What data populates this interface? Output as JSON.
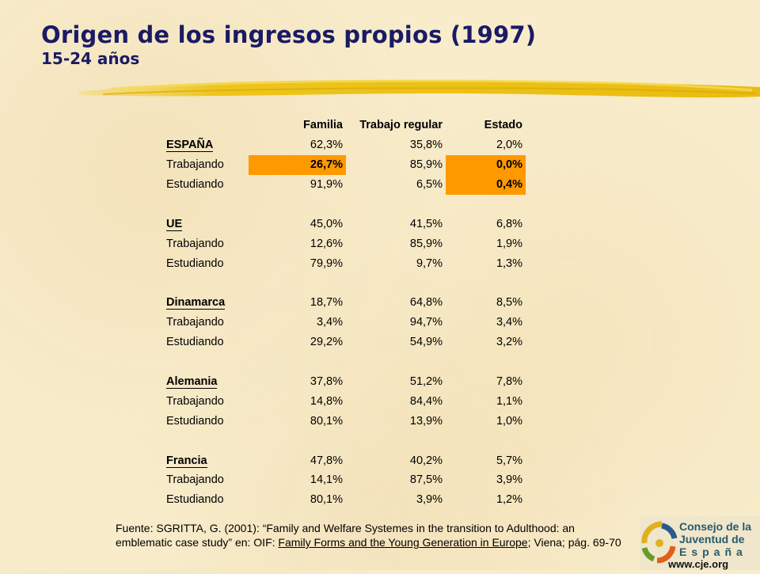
{
  "title": "Origen de los ingresos propios (1997)",
  "subtitle": "15-24 años",
  "headers": [
    "",
    "Familia",
    "Trabajo regular",
    "Estado"
  ],
  "groups": [
    {
      "rows": [
        {
          "label": "ESPAÑA",
          "familia": "62,3%",
          "trabajo": "35,8%",
          "estado": "2,0%"
        },
        {
          "label": "Trabajando",
          "familia": "26,7%",
          "trabajo": "85,9%",
          "estado": "0,0%"
        },
        {
          "label": "Estudiando",
          "familia": "91,9%",
          "trabajo": "6,5%",
          "estado": "0,4%"
        }
      ]
    },
    {
      "rows": [
        {
          "label": "UE",
          "familia": "45,0%",
          "trabajo": "41,5%",
          "estado": "6,8%"
        },
        {
          "label": "Trabajando",
          "familia": "12,6%",
          "trabajo": "85,9%",
          "estado": "1,9%"
        },
        {
          "label": "Estudiando",
          "familia": "79,9%",
          "trabajo": "9,7%",
          "estado": "1,3%"
        }
      ]
    },
    {
      "rows": [
        {
          "label": "Dinamarca",
          "familia": "18,7%",
          "trabajo": "64,8%",
          "estado": "8,5%"
        },
        {
          "label": "Trabajando",
          "familia": "3,4%",
          "trabajo": "94,7%",
          "estado": "3,4%"
        },
        {
          "label": "Estudiando",
          "familia": "29,2%",
          "trabajo": "54,9%",
          "estado": "3,2%"
        }
      ]
    },
    {
      "rows": [
        {
          "label": "Alemania",
          "familia": "37,8%",
          "trabajo": "51,2%",
          "estado": "7,8%"
        },
        {
          "label": "Trabajando",
          "familia": "14,8%",
          "trabajo": "84,4%",
          "estado": "1,1%"
        },
        {
          "label": "Estudiando",
          "familia": "80,1%",
          "trabajo": "13,9%",
          "estado": "1,0%"
        }
      ]
    },
    {
      "rows": [
        {
          "label": "Francia",
          "familia": "47,8%",
          "trabajo": "40,2%",
          "estado": "5,7%"
        },
        {
          "label": "Trabajando",
          "familia": "14,1%",
          "trabajo": "87,5%",
          "estado": "3,9%"
        },
        {
          "label": "Estudiando",
          "familia": "80,1%",
          "trabajo": "3,9%",
          "estado": "1,2%"
        }
      ]
    }
  ],
  "highlight_color": "#ff9900",
  "source": {
    "prefix": "Fuente: SGRITTA, G. (2001): “Family and Welfare Systemes in the transition to Adulthood: an emblematic case study” en: OIF: ",
    "book": "Family Forms and the Young Generation in Europe",
    "suffix": "; Viena; pág. 69-70"
  },
  "logo": {
    "line1": "Consejo de la",
    "line2": "Juventud de",
    "line3": "España",
    "url": "www.cje.org"
  }
}
